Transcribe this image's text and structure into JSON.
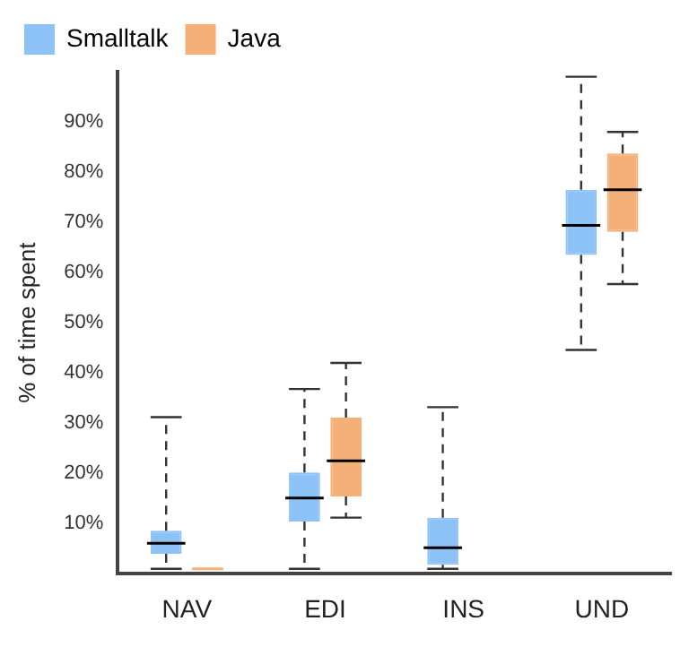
{
  "chart_data": {
    "type": "box",
    "ylabel": "% of time spent",
    "categories": [
      "NAV",
      "EDI",
      "INS",
      "UND"
    ],
    "ylim": [
      0,
      100
    ],
    "yticks": [
      {
        "value": 10,
        "label": "10%"
      },
      {
        "value": 20,
        "label": "20%"
      },
      {
        "value": 30,
        "label": "30%"
      },
      {
        "value": 40,
        "label": "40%"
      },
      {
        "value": 50,
        "label": "50%"
      },
      {
        "value": 60,
        "label": "60%"
      },
      {
        "value": 70,
        "label": "70%"
      },
      {
        "value": 80,
        "label": "80%"
      },
      {
        "value": 90,
        "label": "90%"
      }
    ],
    "grid": false,
    "legend": "top left",
    "series": [
      {
        "name": "Smalltalk",
        "color": "#8cc2f5",
        "boxes": [
          {
            "low": 1,
            "q1": 4.0,
            "median": 6.1,
            "q3": 8.6,
            "high": 31.2
          },
          {
            "low": 1,
            "q1": 10.4,
            "median": 15.1,
            "q3": 20.2,
            "high": 36.8
          },
          {
            "low": 1,
            "q1": 1.8,
            "median": 5.2,
            "q3": 11.2,
            "high": 33.2
          },
          {
            "low": 44.6,
            "q1": 63.5,
            "median": 69.4,
            "q3": 76.5,
            "high": 99
          }
        ]
      },
      {
        "name": "Java",
        "color": "#f5b078",
        "boxes": [
          {
            "low": 1,
            "q1": 1,
            "median": 1,
            "q3": 1,
            "high": 1
          },
          {
            "low": 11.2,
            "q1": 15.4,
            "median": 22.5,
            "q3": 31.1,
            "high": 42.0
          },
          null,
          {
            "low": 57.7,
            "q1": 68.1,
            "median": 76.5,
            "q3": 83.7,
            "high": 88.0
          }
        ]
      }
    ]
  }
}
